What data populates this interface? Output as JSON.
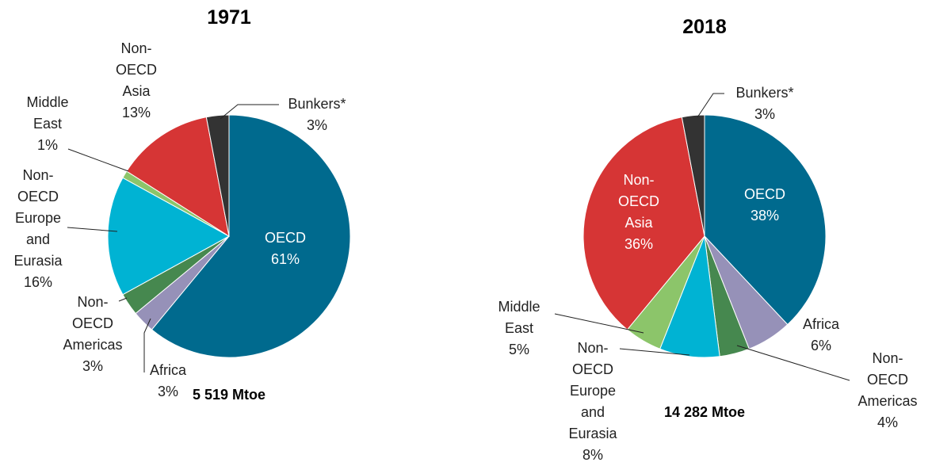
{
  "chart_data": [
    {
      "type": "pie",
      "title": "1971",
      "subtitle": "5 519 Mtoe",
      "categories": [
        "OECD",
        "Africa",
        "Non-OECD Americas",
        "Non-OECD Europe and Eurasia",
        "Middle East",
        "Non-OECD Asia",
        "Bunkers*"
      ],
      "values": [
        61,
        3,
        3,
        16,
        1,
        13,
        3
      ],
      "value_labels": [
        "61%",
        "3%",
        "3%",
        "16%",
        "1%",
        "13%",
        "3%"
      ],
      "colors": [
        "#006a8e",
        "#9691b8",
        "#46884f",
        "#00b3d3",
        "#8cc56a",
        "#d63535",
        "#333333"
      ]
    },
    {
      "type": "pie",
      "title": "2018",
      "subtitle": "14 282 Mtoe",
      "categories": [
        "OECD",
        "Africa",
        "Non-OECD Americas",
        "Non-OECD Europe and Eurasia",
        "Middle East",
        "Non-OECD Asia",
        "Bunkers*"
      ],
      "values": [
        38,
        6,
        4,
        8,
        5,
        36,
        3
      ],
      "value_labels": [
        "38%",
        "6%",
        "4%",
        "8%",
        "5%",
        "36%",
        "3%"
      ],
      "colors": [
        "#006a8e",
        "#9691b8",
        "#46884f",
        "#00b3d3",
        "#8cc56a",
        "#d63535",
        "#333333"
      ]
    }
  ]
}
